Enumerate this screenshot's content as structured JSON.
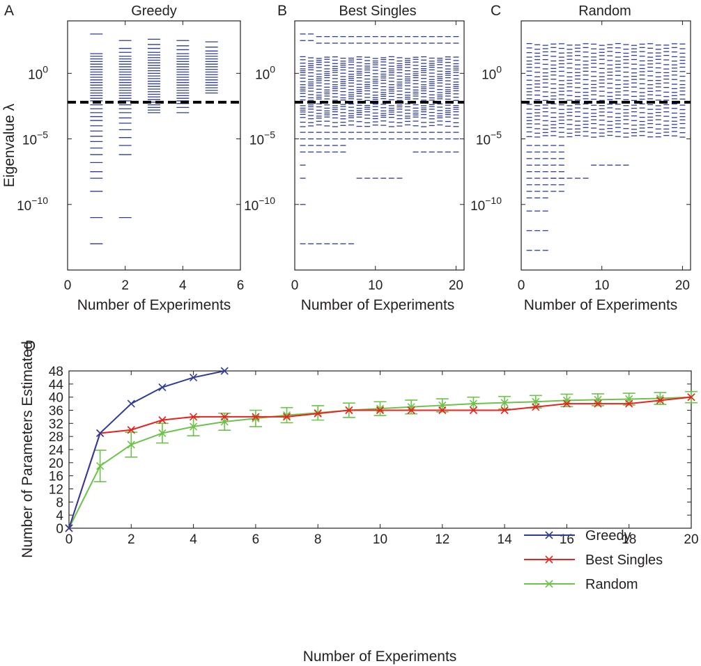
{
  "colors": {
    "greedy": "#2e3c96",
    "best_singles": "#e8231f",
    "random": "#6cc24a",
    "threshold": "#000000",
    "eig": "#2e3c96"
  },
  "chart_data": [
    {
      "panel": "A",
      "type": "scatter",
      "marker": "horizontal-dash",
      "title": "Greedy",
      "xlabel": "Number of Experiments",
      "ylabel": "Eigenvalue λ",
      "xlim": [
        0,
        6
      ],
      "ylim_log10": [
        -15,
        4
      ],
      "yscale": "log",
      "xticks": [
        0,
        2,
        4,
        6
      ],
      "ytick_labels": [
        {
          "exp": 0,
          "label": "10",
          "sup": "0"
        },
        {
          "exp": -5,
          "label": "10",
          "sup": "−5"
        },
        {
          "exp": -10,
          "label": "10",
          "sup": "−10"
        }
      ],
      "threshold_log10": -2.2,
      "columns": [
        {
          "x": 1,
          "log10_eigenvalues": [
            3.0,
            1.5,
            1.3,
            1.1,
            0.9,
            0.7,
            0.5,
            0.3,
            0.1,
            -0.1,
            -0.3,
            -0.5,
            -0.7,
            -0.9,
            -1.1,
            -1.3,
            -1.5,
            -1.7,
            -1.9,
            -2.1,
            -2.4,
            -2.7,
            -3.0,
            -3.3,
            -3.6,
            -4.0,
            -4.4,
            -4.8,
            -5.2,
            -5.7,
            -6.2,
            -6.8,
            -7.5,
            -8.0,
            -9.0,
            -11.0,
            -13.0
          ]
        },
        {
          "x": 2,
          "log10_eigenvalues": [
            2.5,
            1.9,
            1.6,
            1.3,
            1.1,
            0.9,
            0.7,
            0.5,
            0.3,
            0.1,
            -0.1,
            -0.3,
            -0.5,
            -0.7,
            -0.9,
            -1.1,
            -1.3,
            -1.5,
            -1.7,
            -1.9,
            -2.1,
            -2.4,
            -2.7,
            -3.0,
            -3.4,
            -3.8,
            -4.3,
            -4.9,
            -5.5,
            -6.2,
            -11.0
          ]
        },
        {
          "x": 3,
          "log10_eigenvalues": [
            2.6,
            2.2,
            1.9,
            1.6,
            1.4,
            1.2,
            1.0,
            0.8,
            0.6,
            0.4,
            0.2,
            0.0,
            -0.2,
            -0.4,
            -0.6,
            -0.8,
            -1.0,
            -1.2,
            -1.4,
            -1.6,
            -1.8,
            -2.0,
            -2.2,
            -2.4,
            -2.6,
            -2.8,
            -3.0
          ]
        },
        {
          "x": 4,
          "log10_eigenvalues": [
            2.5,
            2.1,
            1.8,
            1.5,
            1.3,
            1.1,
            0.9,
            0.7,
            0.5,
            0.3,
            0.1,
            -0.1,
            -0.3,
            -0.5,
            -0.7,
            -0.9,
            -1.1,
            -1.3,
            -1.5,
            -1.7,
            -1.9,
            -2.1,
            -2.3,
            -2.6,
            -3.0
          ]
        },
        {
          "x": 5,
          "log10_eigenvalues": [
            2.4,
            2.0,
            1.7,
            1.5,
            1.3,
            1.1,
            0.9,
            0.7,
            0.5,
            0.3,
            0.1,
            -0.1,
            -0.3,
            -0.5,
            -0.7,
            -0.9,
            -1.1,
            -1.3,
            -1.5
          ]
        }
      ]
    },
    {
      "panel": "B",
      "type": "scatter",
      "marker": "horizontal-dash",
      "title": "Best Singles",
      "xlabel": "Number of Experiments",
      "ylabel": "",
      "xlim": [
        0,
        21
      ],
      "ylim_log10": [
        -15,
        4
      ],
      "yscale": "log",
      "xticks": [
        0,
        10,
        20
      ],
      "ytick_labels": [
        {
          "exp": 0,
          "label": "10",
          "sup": "0"
        },
        {
          "exp": -5,
          "label": "10",
          "sup": "−5"
        },
        {
          "exp": -10,
          "label": "10",
          "sup": "−10"
        }
      ],
      "threshold_log10": -2.2,
      "num_columns": 20,
      "bands_log10": [
        1.2,
        1.0,
        0.8,
        0.6,
        0.4,
        0.2,
        0.0,
        -0.2,
        -0.4,
        -0.6,
        -0.8,
        -1.0,
        -1.2,
        -1.4,
        -1.6,
        -1.8,
        -2.0,
        -2.4,
        -2.6,
        -2.8,
        -3.0,
        -3.2,
        -3.4,
        -3.7,
        -4.0
      ],
      "upper_log10": [
        {
          "from": 1,
          "to": 2,
          "values": [
            3.0,
            2.5
          ]
        },
        {
          "from": 3,
          "to": 20,
          "values": [
            2.8,
            2.3
          ]
        }
      ],
      "lower_log10": [
        {
          "from": 1,
          "to": 20,
          "values": [
            -4.5,
            -5.0
          ]
        },
        {
          "from": 1,
          "to": 6,
          "values": [
            -5.5,
            -6.0
          ]
        },
        {
          "from": 15,
          "to": 20,
          "values": [
            -6.0
          ]
        }
      ],
      "tail_log10": [
        {
          "from": 1,
          "to": 1,
          "values": [
            -7.0,
            -8.0,
            -10.0
          ]
        },
        {
          "from": 8,
          "to": 13,
          "values": [
            -8.0
          ]
        },
        {
          "from": 1,
          "to": 7,
          "values": [
            -13.0
          ]
        }
      ]
    },
    {
      "panel": "C",
      "type": "scatter",
      "marker": "horizontal-dash",
      "title": "Random",
      "xlabel": "Number of Experiments",
      "ylabel": "",
      "xlim": [
        0,
        21
      ],
      "ylim_log10": [
        -15,
        4
      ],
      "yscale": "log",
      "xticks": [
        0,
        10,
        20
      ],
      "ytick_labels": [
        {
          "exp": 0,
          "label": "10",
          "sup": "0"
        },
        {
          "exp": -5,
          "label": "10",
          "sup": "−5"
        },
        {
          "exp": -10,
          "label": "10",
          "sup": "−10"
        }
      ],
      "threshold_log10": -2.2,
      "num_columns": 20,
      "bands_log10": [
        2.2,
        1.9,
        1.6,
        1.3,
        1.0,
        0.7,
        0.4,
        0.1,
        -0.2,
        -0.5,
        -0.8,
        -1.1,
        -1.4,
        -1.7,
        -2.0,
        -2.4,
        -2.7,
        -3.0,
        -3.3,
        -3.6,
        -3.9,
        -4.2,
        -4.5,
        -4.8
      ],
      "extra_log10": [
        {
          "from": 1,
          "to": 5,
          "values": [
            -5.5,
            -6.0,
            -6.5,
            -7.0,
            -7.5,
            -8.0,
            -8.5,
            -9.0
          ]
        },
        {
          "from": 4,
          "to": 8,
          "values": [
            -8.0
          ]
        },
        {
          "from": 9,
          "to": 13,
          "values": [
            -7.0
          ]
        },
        {
          "from": 1,
          "to": 3,
          "values": [
            -9.5,
            -10.5,
            -12.0,
            -13.5
          ]
        }
      ]
    },
    {
      "panel": "D",
      "type": "line",
      "xlabel": "Number of Experiments",
      "ylabel": "Number of Parameters Estimated",
      "xlim": [
        0,
        20
      ],
      "ylim": [
        0,
        48
      ],
      "xticks": [
        0,
        2,
        4,
        6,
        8,
        10,
        12,
        14,
        16,
        18,
        20
      ],
      "yticks": [
        0,
        4,
        8,
        12,
        16,
        20,
        24,
        28,
        32,
        36,
        40,
        44,
        48
      ],
      "legend_position": "lower-right",
      "series": [
        {
          "name": "Greedy",
          "color": "#2e3c96",
          "marker": "x",
          "x": [
            0,
            1,
            2,
            3,
            4,
            5
          ],
          "y": [
            0,
            29,
            38,
            43,
            46,
            48
          ]
        },
        {
          "name": "Best Singles",
          "color": "#e8231f",
          "marker": "x",
          "x": [
            0,
            1,
            2,
            3,
            4,
            5,
            6,
            7,
            8,
            9,
            10,
            11,
            12,
            13,
            14,
            15,
            16,
            17,
            18,
            19,
            20
          ],
          "y": [
            0,
            29,
            30,
            33,
            34,
            34,
            34,
            34,
            35,
            36,
            36,
            36,
            36,
            36,
            36,
            37,
            38,
            38,
            38,
            39,
            40
          ]
        },
        {
          "name": "Random",
          "color": "#6cc24a",
          "marker": "x",
          "x": [
            0,
            1,
            2,
            3,
            4,
            5,
            6,
            7,
            8,
            9,
            10,
            11,
            12,
            13,
            14,
            15,
            16,
            17,
            18,
            19,
            20
          ],
          "y": [
            0,
            19,
            25.5,
            29,
            31,
            32.5,
            33.5,
            34.5,
            35.2,
            36,
            36.5,
            37,
            37.5,
            38,
            38.3,
            38.6,
            39,
            39.2,
            39.4,
            39.6,
            40
          ],
          "err": [
            0,
            4.8,
            3.8,
            3,
            2.8,
            2.6,
            2.5,
            2.3,
            2.2,
            2.2,
            2.1,
            2.1,
            2,
            2,
            1.9,
            1.9,
            1.9,
            1.8,
            1.8,
            1.8,
            1.7
          ]
        }
      ]
    }
  ]
}
